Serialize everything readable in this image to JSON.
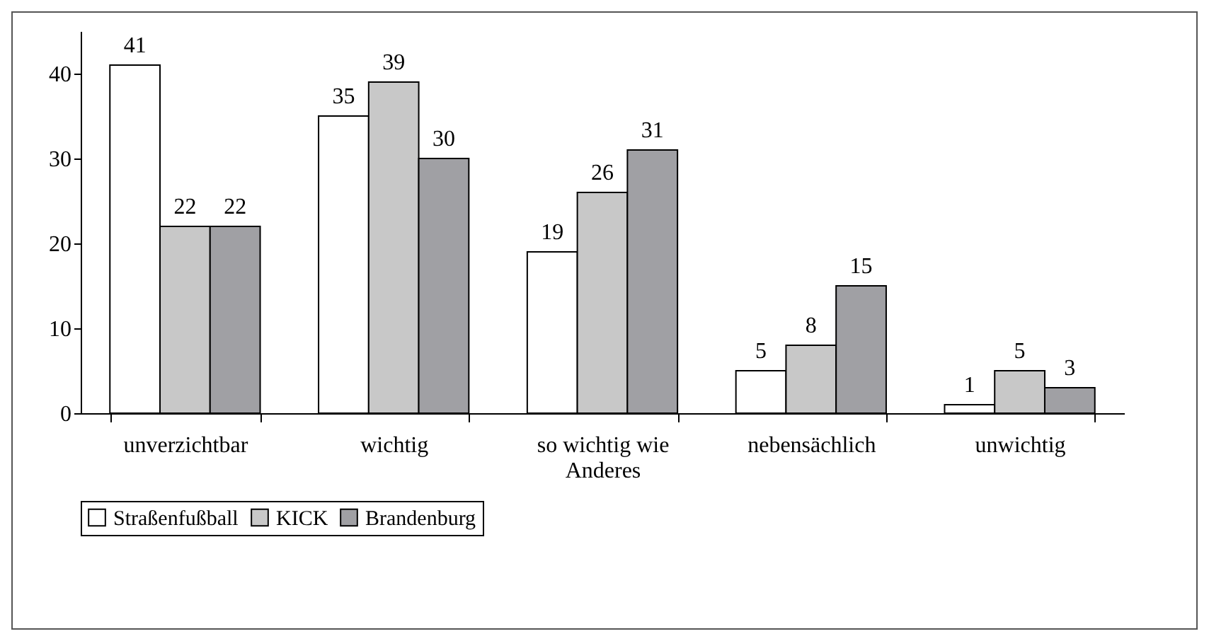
{
  "chart_data": {
    "type": "bar",
    "categories": [
      "unverzichtbar",
      "wichtig",
      "so wichtig wie Anderes",
      "nebensächlich",
      "unwichtig"
    ],
    "series": [
      {
        "name": "Straßenfußball",
        "color": "#ffffff",
        "values": [
          41,
          35,
          19,
          5,
          1
        ]
      },
      {
        "name": "KICK",
        "color": "#c8c8c8",
        "values": [
          22,
          39,
          26,
          8,
          5
        ]
      },
      {
        "name": "Brandenburg",
        "color": "#a0a0a4",
        "values": [
          22,
          30,
          31,
          15,
          3
        ]
      }
    ],
    "ylim": [
      0,
      45
    ],
    "yticks": [
      0,
      10,
      20,
      30,
      40
    ],
    "grid": false,
    "legend": "bottom",
    "data_labels": true
  }
}
